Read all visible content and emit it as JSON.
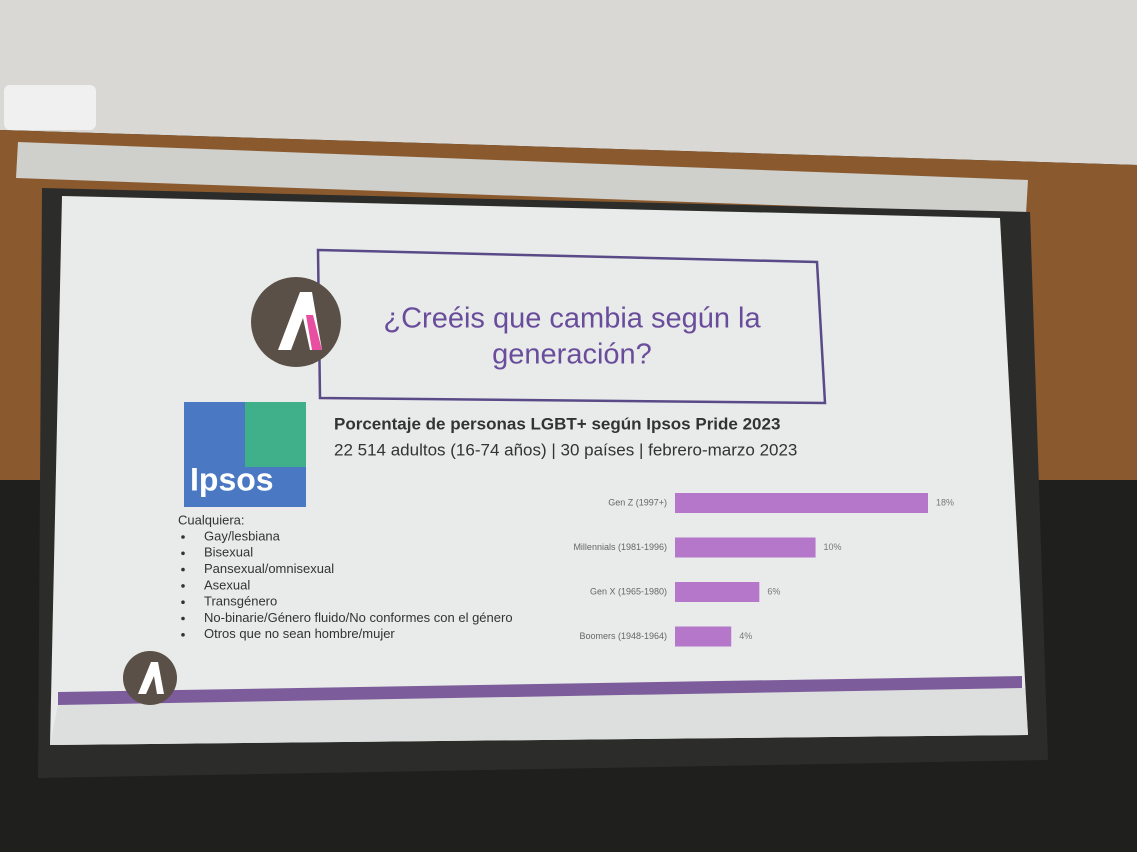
{
  "slide": {
    "heading": [
      "¿Creéis que cambia según la",
      "generación?"
    ],
    "logo_text": "Ipsos",
    "list_title": "Cualquiera:",
    "list": [
      "Gay/lesbiana",
      "Bisexual",
      "Pansexual/omnisexual",
      "Asexual",
      "Transgénero",
      "No-binarie/Género fluido/No conformes con el género",
      "Otros que no sean hombre/mujer"
    ]
  },
  "chart_data": {
    "type": "hbar",
    "title": "Porcentaje de personas LGBT+ según Ipsos Pride 2023",
    "subtitle": "22 514 adultos (16-74 años) | 30 países | febrero-marzo 2023",
    "categories": [
      "Gen Z (1997+)",
      "Millennials (1981-1996)",
      "Gen X (1965-1980)",
      "Boomers (1948-1964)"
    ],
    "values": [
      18,
      10,
      6,
      4
    ],
    "value_labels": [
      "18%",
      "10%",
      "6%",
      "4%"
    ],
    "color": "#b577c9"
  }
}
